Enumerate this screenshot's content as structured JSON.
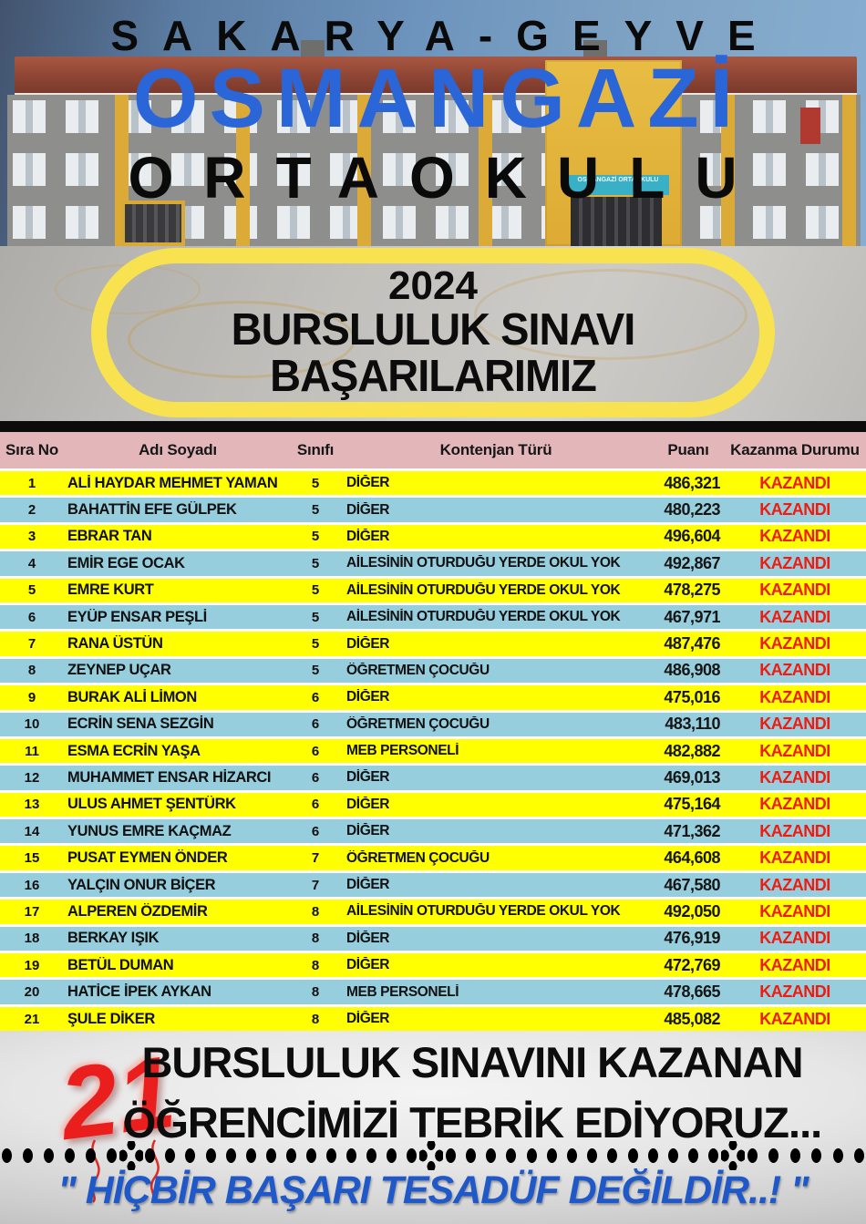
{
  "colors": {
    "title-blue": "#2b66d9",
    "badge-yellow": "#f9e24f",
    "header-pink": "#e3b7ba",
    "row-yellow": "#ffff00",
    "row-blue": "#97cedd",
    "status-red": "#ee1c10",
    "quote-blue": "#1f58c9",
    "balloon-red": "#ea1f1d"
  },
  "header": {
    "location": "SAKARYA-GEYVE",
    "school_name": "OSMANGAZİ",
    "school_type": "ORTAOKULU",
    "building_sign": "OSMANGAZİ ORTAOKULU"
  },
  "badge": {
    "year": "2024",
    "line1": "BURSLULUK SINAVI",
    "line2": "BAŞARILARIMIZ"
  },
  "table": {
    "headers": [
      "Sıra No",
      "Adı Soyadı",
      "Sınıfı",
      "Kontenjan Türü",
      "Puanı",
      "Kazanma Durumu"
    ],
    "rows": [
      {
        "no": "1",
        "name": "ALİ HAYDAR MEHMET YAMAN",
        "grade": "5",
        "quota": "DİĞER",
        "score": "486,321",
        "status": "KAZANDI"
      },
      {
        "no": "2",
        "name": "BAHATTİN EFE GÜLPEK",
        "grade": "5",
        "quota": "DİĞER",
        "score": "480,223",
        "status": "KAZANDI"
      },
      {
        "no": "3",
        "name": "EBRAR TAN",
        "grade": "5",
        "quota": "DİĞER",
        "score": "496,604",
        "status": "KAZANDI"
      },
      {
        "no": "4",
        "name": "EMİR EGE OCAK",
        "grade": "5",
        "quota": "AİLESİNİN OTURDUĞU YERDE OKUL YOK",
        "score": "492,867",
        "status": "KAZANDI"
      },
      {
        "no": "5",
        "name": "EMRE KURT",
        "grade": "5",
        "quota": "AİLESİNİN OTURDUĞU YERDE OKUL YOK",
        "score": "478,275",
        "status": "KAZANDI"
      },
      {
        "no": "6",
        "name": "EYÜP ENSAR PEŞLİ",
        "grade": "5",
        "quota": "AİLESİNİN OTURDUĞU YERDE OKUL YOK",
        "score": "467,971",
        "status": "KAZANDI"
      },
      {
        "no": "7",
        "name": "RANA ÜSTÜN",
        "grade": "5",
        "quota": "DİĞER",
        "score": "487,476",
        "status": "KAZANDI"
      },
      {
        "no": "8",
        "name": "ZEYNEP UÇAR",
        "grade": "5",
        "quota": "ÖĞRETMEN ÇOCUĞU",
        "score": "486,908",
        "status": "KAZANDI"
      },
      {
        "no": "9",
        "name": "BURAK ALİ LİMON",
        "grade": "6",
        "quota": "DİĞER",
        "score": "475,016",
        "status": "KAZANDI"
      },
      {
        "no": "10",
        "name": "ECRİN SENA SEZGİN",
        "grade": "6",
        "quota": "ÖĞRETMEN ÇOCUĞU",
        "score": "483,110",
        "status": "KAZANDI"
      },
      {
        "no": "11",
        "name": "ESMA ECRİN YAŞA",
        "grade": "6",
        "quota": "MEB PERSONELİ",
        "score": "482,882",
        "status": "KAZANDI"
      },
      {
        "no": "12",
        "name": "MUHAMMET ENSAR HİZARCI",
        "grade": "6",
        "quota": "DİĞER",
        "score": "469,013",
        "status": "KAZANDI"
      },
      {
        "no": "13",
        "name": "ULUS AHMET ŞENTÜRK",
        "grade": "6",
        "quota": "DİĞER",
        "score": "475,164",
        "status": "KAZANDI"
      },
      {
        "no": "14",
        "name": "YUNUS EMRE KAÇMAZ",
        "grade": "6",
        "quota": "DİĞER",
        "score": "471,362",
        "status": "KAZANDI"
      },
      {
        "no": "15",
        "name": "PUSAT EYMEN ÖNDER",
        "grade": "7",
        "quota": "ÖĞRETMEN ÇOCUĞU",
        "score": "464,608",
        "status": "KAZANDI"
      },
      {
        "no": "16",
        "name": "YALÇIN ONUR BİÇER",
        "grade": "7",
        "quota": "DİĞER",
        "score": "467,580",
        "status": "KAZANDI"
      },
      {
        "no": "17",
        "name": "ALPEREN ÖZDEMİR",
        "grade": "8",
        "quota": "AİLESİNİN OTURDUĞU YERDE OKUL YOK",
        "score": "492,050",
        "status": "KAZANDI"
      },
      {
        "no": "18",
        "name": "BERKAY IŞIK",
        "grade": "8",
        "quota": "DİĞER",
        "score": "476,919",
        "status": "KAZANDI"
      },
      {
        "no": "19",
        "name": "BETÜL DUMAN",
        "grade": "8",
        "quota": "DİĞER",
        "score": "472,769",
        "status": "KAZANDI"
      },
      {
        "no": "20",
        "name": "HATİCE İPEK AYKAN",
        "grade": "8",
        "quota": "MEB PERSONELİ",
        "score": "478,665",
        "status": "KAZANDI"
      },
      {
        "no": "21",
        "name": "ŞULE DİKER",
        "grade": "8",
        "quota": "DİĞER",
        "score": "485,082",
        "status": "KAZANDI"
      }
    ]
  },
  "footer": {
    "count": "21",
    "line1": "BURSLULUK SINAVINI KAZANAN",
    "line2": "ÖĞRENCİMİZİ TEBRİK EDİYORUZ...",
    "quote": "\" HİÇBİR BAŞARI TESADÜF DEĞİLDİR..! \""
  }
}
